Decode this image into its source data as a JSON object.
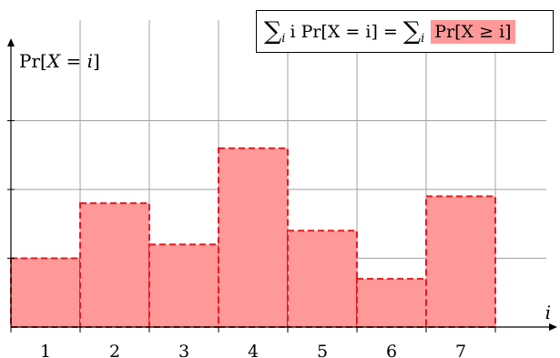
{
  "colors": {
    "bar_fill": "#ff9999",
    "bar_stroke": "#e41a1c",
    "grid": "#a0a0a0",
    "highlight": "#ff9999"
  },
  "chart_data": {
    "type": "bar",
    "categories": [
      "1",
      "2",
      "3",
      "4",
      "5",
      "6",
      "7"
    ],
    "values": [
      1.0,
      1.8,
      1.2,
      2.6,
      1.4,
      0.7,
      1.9
    ],
    "ylim": [
      0,
      4
    ],
    "xlabel": "i",
    "ylabel": "Pr[X = i]",
    "grid": true,
    "legend": "none"
  },
  "formula": {
    "sum_symbol": "∑",
    "subscript": "i",
    "lhs": "i Pr[X = i] =",
    "rhs": "Pr[X ≥ i]"
  }
}
